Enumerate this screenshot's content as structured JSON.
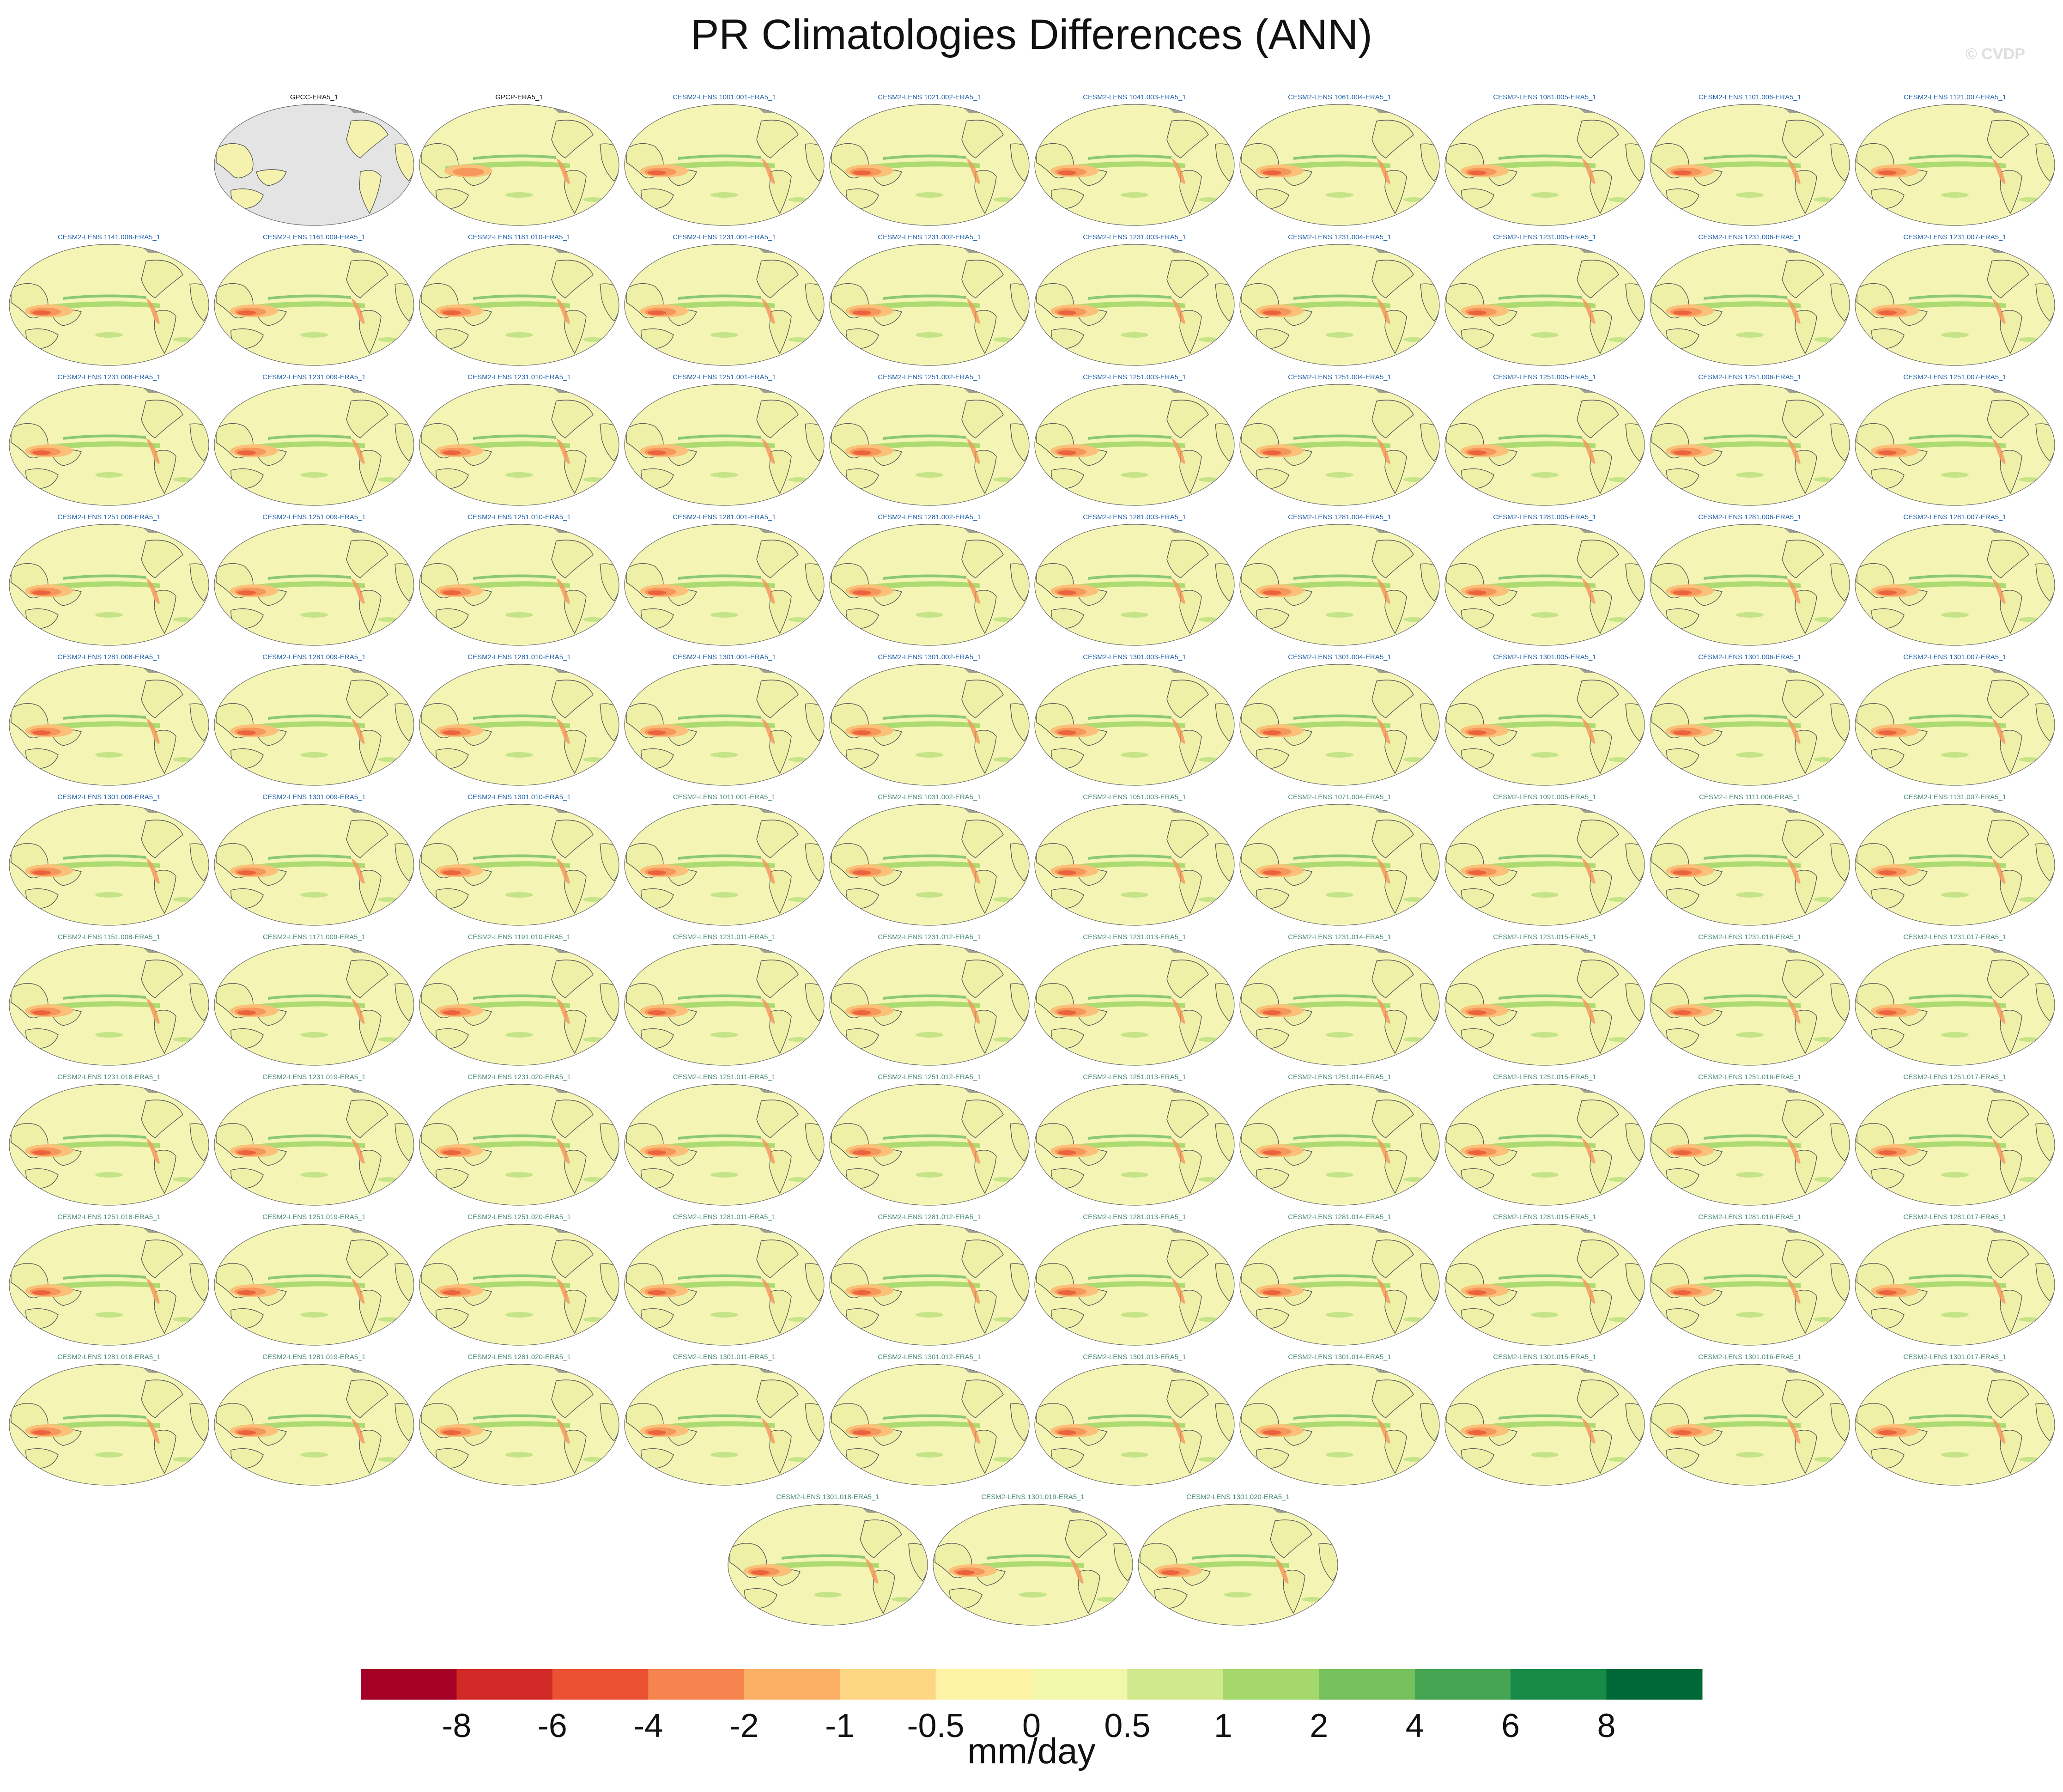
{
  "title": "PR Climatologies Differences (ANN)",
  "watermark": "© CVDP",
  "panels": [
    {
      "label": "GPCC-ERA5_1",
      "label_color": "#111111",
      "variant": "obs-gpcc"
    },
    {
      "label": "GPCP-ERA5_1",
      "label_color": "#111111",
      "variant": "obs-gpcp"
    },
    {
      "label": "CESM2-LENS 1001.001-ERA5_1",
      "label_color": "#1f5fa8",
      "variant": "model"
    },
    {
      "label": "CESM2-LENS 1021.002-ERA5_1",
      "label_color": "#1f5fa8",
      "variant": "model"
    },
    {
      "label": "CESM2-LENS 1041.003-ERA5_1",
      "label_color": "#1f5fa8",
      "variant": "model"
    },
    {
      "label": "CESM2-LENS 1061.004-ERA5_1",
      "label_color": "#1f5fa8",
      "variant": "model"
    },
    {
      "label": "CESM2-LENS 1081.005-ERA5_1",
      "label_color": "#1f5fa8",
      "variant": "model"
    },
    {
      "label": "CESM2-LENS 1101.006-ERA5_1",
      "label_color": "#1f5fa8",
      "variant": "model"
    },
    {
      "label": "CESM2-LENS 1121.007-ERA5_1",
      "label_color": "#1f5fa8",
      "variant": "model"
    },
    {
      "label": "CESM2-LENS 1141.008-ERA5_1",
      "label_color": "#1f5fa8",
      "variant": "model"
    },
    {
      "label": "CESM2-LENS 1161.009-ERA5_1",
      "label_color": "#1f5fa8",
      "variant": "model"
    },
    {
      "label": "CESM2-LENS 1181.010-ERA5_1",
      "label_color": "#1f5fa8",
      "variant": "model"
    },
    {
      "label": "CESM2-LENS 1231.001-ERA5_1",
      "label_color": "#1f5fa8",
      "variant": "model"
    },
    {
      "label": "CESM2-LENS 1231.002-ERA5_1",
      "label_color": "#1f5fa8",
      "variant": "model"
    },
    {
      "label": "CESM2-LENS 1231.003-ERA5_1",
      "label_color": "#1f5fa8",
      "variant": "model"
    },
    {
      "label": "CESM2-LENS 1231.004-ERA5_1",
      "label_color": "#1f5fa8",
      "variant": "model"
    },
    {
      "label": "CESM2-LENS 1231.005-ERA5_1",
      "label_color": "#1f5fa8",
      "variant": "model"
    },
    {
      "label": "CESM2-LENS 1231.006-ERA5_1",
      "label_color": "#1f5fa8",
      "variant": "model"
    },
    {
      "label": "CESM2-LENS 1231.007-ERA5_1",
      "label_color": "#1f5fa8",
      "variant": "model"
    },
    {
      "label": "CESM2-LENS 1231.008-ERA5_1",
      "label_color": "#1f5fa8",
      "variant": "model"
    },
    {
      "label": "CESM2-LENS 1231.009-ERA5_1",
      "label_color": "#1f5fa8",
      "variant": "model"
    },
    {
      "label": "CESM2-LENS 1231.010-ERA5_1",
      "label_color": "#1f5fa8",
      "variant": "model"
    },
    {
      "label": "CESM2-LENS 1251.001-ERA5_1",
      "label_color": "#1f5fa8",
      "variant": "model"
    },
    {
      "label": "CESM2-LENS 1251.002-ERA5_1",
      "label_color": "#1f5fa8",
      "variant": "model"
    },
    {
      "label": "CESM2-LENS 1251.003-ERA5_1",
      "label_color": "#1f5fa8",
      "variant": "model"
    },
    {
      "label": "CESM2-LENS 1251.004-ERA5_1",
      "label_color": "#1f5fa8",
      "variant": "model"
    },
    {
      "label": "CESM2-LENS 1251.005-ERA5_1",
      "label_color": "#1f5fa8",
      "variant": "model"
    },
    {
      "label": "CESM2-LENS 1251.006-ERA5_1",
      "label_color": "#1f5fa8",
      "variant": "model"
    },
    {
      "label": "CESM2-LENS 1251.007-ERA5_1",
      "label_color": "#1f5fa8",
      "variant": "model"
    },
    {
      "label": "CESM2-LENS 1251.008-ERA5_1",
      "label_color": "#1f5fa8",
      "variant": "model"
    },
    {
      "label": "CESM2-LENS 1251.009-ERA5_1",
      "label_color": "#1f5fa8",
      "variant": "model"
    },
    {
      "label": "CESM2-LENS 1251.010-ERA5_1",
      "label_color": "#1f5fa8",
      "variant": "model"
    },
    {
      "label": "CESM2-LENS 1281.001-ERA5_1",
      "label_color": "#1f5fa8",
      "variant": "model"
    },
    {
      "label": "CESM2-LENS 1281.002-ERA5_1",
      "label_color": "#1f5fa8",
      "variant": "model"
    },
    {
      "label": "CESM2-LENS 1281.003-ERA5_1",
      "label_color": "#1f5fa8",
      "variant": "model"
    },
    {
      "label": "CESM2-LENS 1281.004-ERA5_1",
      "label_color": "#1f5fa8",
      "variant": "model"
    },
    {
      "label": "CESM2-LENS 1281.005-ERA5_1",
      "label_color": "#1f5fa8",
      "variant": "model"
    },
    {
      "label": "CESM2-LENS 1281.006-ERA5_1",
      "label_color": "#1f5fa8",
      "variant": "model"
    },
    {
      "label": "CESM2-LENS 1281.007-ERA5_1",
      "label_color": "#1f5fa8",
      "variant": "model"
    },
    {
      "label": "CESM2-LENS 1281.008-ERA5_1",
      "label_color": "#1f5fa8",
      "variant": "model"
    },
    {
      "label": "CESM2-LENS 1281.009-ERA5_1",
      "label_color": "#1f5fa8",
      "variant": "model"
    },
    {
      "label": "CESM2-LENS 1281.010-ERA5_1",
      "label_color": "#1f5fa8",
      "variant": "model"
    },
    {
      "label": "CESM2-LENS 1301.001-ERA5_1",
      "label_color": "#1f5fa8",
      "variant": "model"
    },
    {
      "label": "CESM2-LENS 1301.002-ERA5_1",
      "label_color": "#1f5fa8",
      "variant": "model"
    },
    {
      "label": "CESM2-LENS 1301.003-ERA5_1",
      "label_color": "#1f5fa8",
      "variant": "model"
    },
    {
      "label": "CESM2-LENS 1301.004-ERA5_1",
      "label_color": "#1f5fa8",
      "variant": "model"
    },
    {
      "label": "CESM2-LENS 1301.005-ERA5_1",
      "label_color": "#1f5fa8",
      "variant": "model"
    },
    {
      "label": "CESM2-LENS 1301.006-ERA5_1",
      "label_color": "#1f5fa8",
      "variant": "model"
    },
    {
      "label": "CESM2-LENS 1301.007-ERA5_1",
      "label_color": "#1f5fa8",
      "variant": "model"
    },
    {
      "label": "CESM2-LENS 1301.008-ERA5_1",
      "label_color": "#1f5fa8",
      "variant": "model"
    },
    {
      "label": "CESM2-LENS 1301.009-ERA5_1",
      "label_color": "#1f5fa8",
      "variant": "model"
    },
    {
      "label": "CESM2-LENS 1301.010-ERA5_1",
      "label_color": "#1f5fa8",
      "variant": "model"
    },
    {
      "label": "CESM2-LENS 1011.001-ERA5_1",
      "label_color": "#4a8a78",
      "variant": "model"
    },
    {
      "label": "CESM2-LENS 1031.002-ERA5_1",
      "label_color": "#4a8a78",
      "variant": "model"
    },
    {
      "label": "CESM2-LENS 1051.003-ERA5_1",
      "label_color": "#4a8a78",
      "variant": "model"
    },
    {
      "label": "CESM2-LENS 1071.004-ERA5_1",
      "label_color": "#4a8a78",
      "variant": "model"
    },
    {
      "label": "CESM2-LENS 1091.005-ERA5_1",
      "label_color": "#4a8a78",
      "variant": "model"
    },
    {
      "label": "CESM2-LENS 1111.006-ERA5_1",
      "label_color": "#4a8a78",
      "variant": "model"
    },
    {
      "label": "CESM2-LENS 1131.007-ERA5_1",
      "label_color": "#4a8a78",
      "variant": "model"
    },
    {
      "label": "CESM2-LENS 1151.008-ERA5_1",
      "label_color": "#4a8a78",
      "variant": "model"
    },
    {
      "label": "CESM2-LENS 1171.009-ERA5_1",
      "label_color": "#4a8a78",
      "variant": "model"
    },
    {
      "label": "CESM2-LENS 1191.010-ERA5_1",
      "label_color": "#4a8a78",
      "variant": "model"
    },
    {
      "label": "CESM2-LENS 1231.011-ERA5_1",
      "label_color": "#4a8a78",
      "variant": "model"
    },
    {
      "label": "CESM2-LENS 1231.012-ERA5_1",
      "label_color": "#4a8a78",
      "variant": "model"
    },
    {
      "label": "CESM2-LENS 1231.013-ERA5_1",
      "label_color": "#4a8a78",
      "variant": "model"
    },
    {
      "label": "CESM2-LENS 1231.014-ERA5_1",
      "label_color": "#4a8a78",
      "variant": "model"
    },
    {
      "label": "CESM2-LENS 1231.015-ERA5_1",
      "label_color": "#4a8a78",
      "variant": "model"
    },
    {
      "label": "CESM2-LENS 1231.016-ERA5_1",
      "label_color": "#4a8a78",
      "variant": "model"
    },
    {
      "label": "CESM2-LENS 1231.017-ERA5_1",
      "label_color": "#4a8a78",
      "variant": "model"
    },
    {
      "label": "CESM2-LENS 1231.018-ERA5_1",
      "label_color": "#4a8a78",
      "variant": "model"
    },
    {
      "label": "CESM2-LENS 1231.019-ERA5_1",
      "label_color": "#4a8a78",
      "variant": "model"
    },
    {
      "label": "CESM2-LENS 1231.020-ERA5_1",
      "label_color": "#4a8a78",
      "variant": "model"
    },
    {
      "label": "CESM2-LENS 1251.011-ERA5_1",
      "label_color": "#4a8a78",
      "variant": "model"
    },
    {
      "label": "CESM2-LENS 1251.012-ERA5_1",
      "label_color": "#4a8a78",
      "variant": "model"
    },
    {
      "label": "CESM2-LENS 1251.013-ERA5_1",
      "label_color": "#4a8a78",
      "variant": "model"
    },
    {
      "label": "CESM2-LENS 1251.014-ERA5_1",
      "label_color": "#4a8a78",
      "variant": "model"
    },
    {
      "label": "CESM2-LENS 1251.015-ERA5_1",
      "label_color": "#4a8a78",
      "variant": "model"
    },
    {
      "label": "CESM2-LENS 1251.016-ERA5_1",
      "label_color": "#4a8a78",
      "variant": "model"
    },
    {
      "label": "CESM2-LENS 1251.017-ERA5_1",
      "label_color": "#4a8a78",
      "variant": "model"
    },
    {
      "label": "CESM2-LENS 1251.018-ERA5_1",
      "label_color": "#4a8a78",
      "variant": "model"
    },
    {
      "label": "CESM2-LENS 1251.019-ERA5_1",
      "label_color": "#4a8a78",
      "variant": "model"
    },
    {
      "label": "CESM2-LENS 1251.020-ERA5_1",
      "label_color": "#4a8a78",
      "variant": "model"
    },
    {
      "label": "CESM2-LENS 1281.011-ERA5_1",
      "label_color": "#4a8a78",
      "variant": "model"
    },
    {
      "label": "CESM2-LENS 1281.012-ERA5_1",
      "label_color": "#4a8a78",
      "variant": "model"
    },
    {
      "label": "CESM2-LENS 1281.013-ERA5_1",
      "label_color": "#4a8a78",
      "variant": "model"
    },
    {
      "label": "CESM2-LENS 1281.014-ERA5_1",
      "label_color": "#4a8a78",
      "variant": "model"
    },
    {
      "label": "CESM2-LENS 1281.015-ERA5_1",
      "label_color": "#4a8a78",
      "variant": "model"
    },
    {
      "label": "CESM2-LENS 1281.016-ERA5_1",
      "label_color": "#4a8a78",
      "variant": "model"
    },
    {
      "label": "CESM2-LENS 1281.017-ERA5_1",
      "label_color": "#4a8a78",
      "variant": "model"
    },
    {
      "label": "CESM2-LENS 1281.018-ERA5_1",
      "label_color": "#4a8a78",
      "variant": "model"
    },
    {
      "label": "CESM2-LENS 1281.019-ERA5_1",
      "label_color": "#4a8a78",
      "variant": "model"
    },
    {
      "label": "CESM2-LENS 1281.020-ERA5_1",
      "label_color": "#4a8a78",
      "variant": "model"
    },
    {
      "label": "CESM2-LENS 1301.011-ERA5_1",
      "label_color": "#4a8a78",
      "variant": "model"
    },
    {
      "label": "CESM2-LENS 1301.012-ERA5_1",
      "label_color": "#4a8a78",
      "variant": "model"
    },
    {
      "label": "CESM2-LENS 1301.013-ERA5_1",
      "label_color": "#4a8a78",
      "variant": "model"
    },
    {
      "label": "CESM2-LENS 1301.014-ERA5_1",
      "label_color": "#4a8a78",
      "variant": "model"
    },
    {
      "label": "CESM2-LENS 1301.015-ERA5_1",
      "label_color": "#4a8a78",
      "variant": "model"
    },
    {
      "label": "CESM2-LENS 1301.016-ERA5_1",
      "label_color": "#4a8a78",
      "variant": "model"
    },
    {
      "label": "CESM2-LENS 1301.017-ERA5_1",
      "label_color": "#4a8a78",
      "variant": "model"
    },
    {
      "label": "CESM2-LENS 1301.018-ERA5_1",
      "label_color": "#4a8a78",
      "variant": "model"
    },
    {
      "label": "CESM2-LENS 1301.019-ERA5_1",
      "label_color": "#4a8a78",
      "variant": "model"
    },
    {
      "label": "CESM2-LENS 1301.020-ERA5_1",
      "label_color": "#4a8a78",
      "variant": "model"
    }
  ],
  "colorbar": {
    "unit": "mm/day",
    "colors": [
      "#a50026",
      "#d22a26",
      "#ea5233",
      "#f5844e",
      "#fbb066",
      "#fdd683",
      "#fef3a5",
      "#f2f7ac",
      "#cfe98c",
      "#a5d86a",
      "#76c05d",
      "#45a553",
      "#178a47",
      "#006837"
    ],
    "tick_labels": [
      "-8",
      "-6",
      "-4",
      "-2",
      "-1",
      "-0.5",
      "0",
      "0.5",
      "1",
      "2",
      "4",
      "6",
      "8"
    ]
  },
  "map_colors": {
    "ocean_base": "#f4f5b4",
    "land_base": "#f5f2b0",
    "dry_strong": "#e8583a",
    "dry": "#f5955a",
    "dry_light": "#fbc07a",
    "wet": "#a5d86a",
    "wet_strong": "#5fb55a",
    "outline": "#555555",
    "obs_gray": "#e4e4e4"
  }
}
